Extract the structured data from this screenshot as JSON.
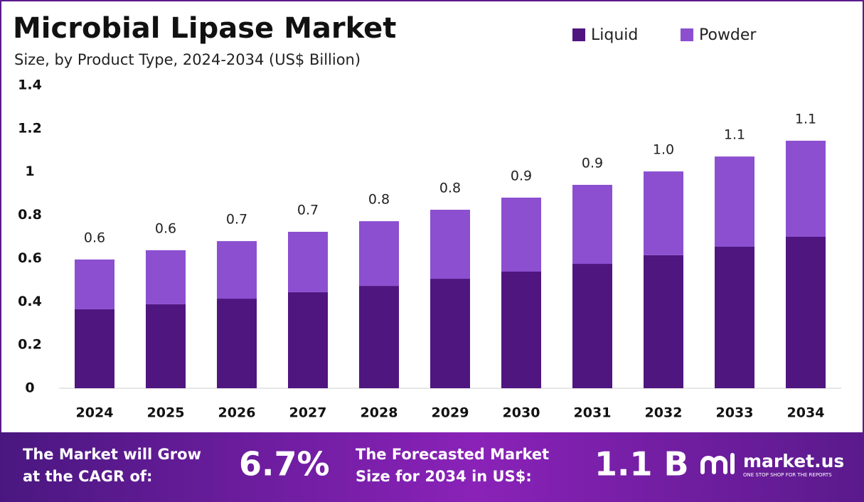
{
  "chart_data": {
    "type": "stacked-bar",
    "title": "Microbial Lipase Market",
    "subtitle": "Size, by Product Type, 2024-2034 (US$ Billion)",
    "categories": [
      "2024",
      "2025",
      "2026",
      "2027",
      "2028",
      "2029",
      "2030",
      "2031",
      "2032",
      "2033",
      "2034"
    ],
    "series": [
      {
        "name": "Liquid",
        "color": "#4f1680",
        "values": [
          0.365,
          0.388,
          0.414,
          0.444,
          0.473,
          0.506,
          0.539,
          0.575,
          0.615,
          0.654,
          0.7
        ]
      },
      {
        "name": "Powder",
        "color": "#8b4fd0",
        "values": [
          0.23,
          0.25,
          0.266,
          0.279,
          0.299,
          0.319,
          0.342,
          0.365,
          0.387,
          0.417,
          0.444
        ]
      }
    ],
    "total_labels": [
      "0.6",
      "0.6",
      "0.7",
      "0.7",
      "0.8",
      "0.8",
      "0.9",
      "0.9",
      "1.0",
      "1.1",
      "1.1"
    ],
    "ylim": [
      0,
      1.4
    ],
    "yticks": [
      0,
      0.2,
      0.4,
      0.6,
      0.8,
      1,
      1.2,
      1.4
    ],
    "grid": false,
    "legend": "top-right"
  },
  "footer": {
    "cagr_lines": [
      "The Market will Grow",
      "at the CAGR of:"
    ],
    "cagr_value": "6.7%",
    "forecast_lines": [
      "The Forecasted Market",
      "Size for 2034 in US$:"
    ],
    "forecast_value": "1.1 B",
    "logo": "market.us",
    "tagline": "ONE STOP SHOP FOR THE REPORTS"
  }
}
